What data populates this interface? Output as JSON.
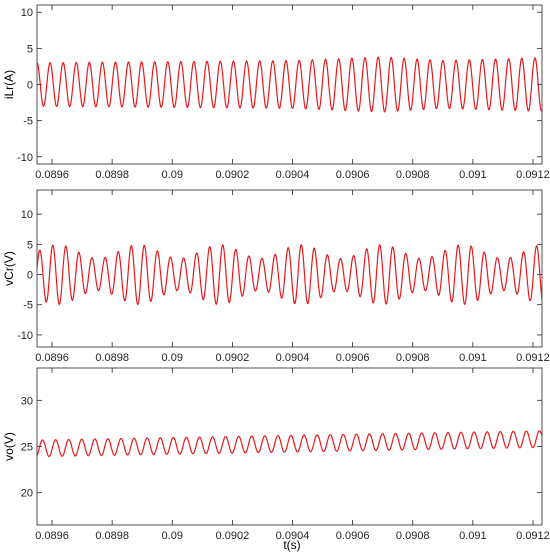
{
  "chart_data": [
    {
      "type": "line",
      "ylabel": "iLr(A)",
      "xlabel": "",
      "xlim": [
        0.08955,
        0.09123
      ],
      "ylim": [
        -11,
        11
      ],
      "xticks": [
        "0.0896",
        "0.0898",
        "0.09",
        "0.0902",
        "0.0904",
        "0.0906",
        "0.0908",
        "0.091",
        "0.0912"
      ],
      "yticks": [
        "10",
        "5",
        "0",
        "-5",
        "-10"
      ],
      "grid": false,
      "series": [
        {
          "color": "#e8191d",
          "waveform": {
            "kind": "sine",
            "offset": 0.0,
            "amplitude": 3.2,
            "amplitude_envelope": [
              [
                0.08955,
                3.0
              ],
              [
                0.0904,
                3.3
              ],
              [
                0.0907,
                3.8
              ],
              [
                0.0909,
                3.3
              ],
              [
                0.09123,
                3.7
              ]
            ],
            "period": 4.35e-05,
            "start_x": 0.08955,
            "start_value": 3.2
          }
        }
      ]
    },
    {
      "type": "line",
      "ylabel": "vCr(V)",
      "xlabel": "",
      "xlim": [
        0.08955,
        0.09123
      ],
      "ylim": [
        -12,
        14
      ],
      "xticks": [
        "0.0896",
        "0.0898",
        "0.09",
        "0.0902",
        "0.0904",
        "0.0906",
        "0.0908",
        "0.091",
        "0.0912"
      ],
      "yticks": [
        "10",
        "5",
        "0",
        "-5",
        "-10"
      ],
      "grid": false,
      "series": [
        {
          "color": "#e8191d",
          "waveform": {
            "kind": "sine-with-beat",
            "offset": 0.0,
            "amplitude": 3.8,
            "beat_depth": 0.3,
            "beat_period": 0.00027,
            "period": 4.35e-05,
            "start_x": 0.08955,
            "start_value": 1.0
          }
        }
      ]
    },
    {
      "type": "line",
      "ylabel": "vo(V)",
      "xlabel": "t(s)",
      "xlim": [
        0.08955,
        0.09123
      ],
      "ylim": [
        16.5,
        33.5
      ],
      "xticks": [
        "0.0896",
        "0.0898",
        "0.09",
        "0.0902",
        "0.0904",
        "0.0906",
        "0.0908",
        "0.091",
        "0.0912"
      ],
      "yticks": [
        "30",
        "25",
        "20"
      ],
      "grid": false,
      "series": [
        {
          "color": "#e8191d",
          "waveform": {
            "kind": "sine-on-ramp",
            "offset_start": 24.8,
            "offset_end": 25.8,
            "amplitude": 0.9,
            "period": 4.35e-05,
            "start_x": 0.08955,
            "start_value": 24.0
          }
        }
      ]
    }
  ]
}
